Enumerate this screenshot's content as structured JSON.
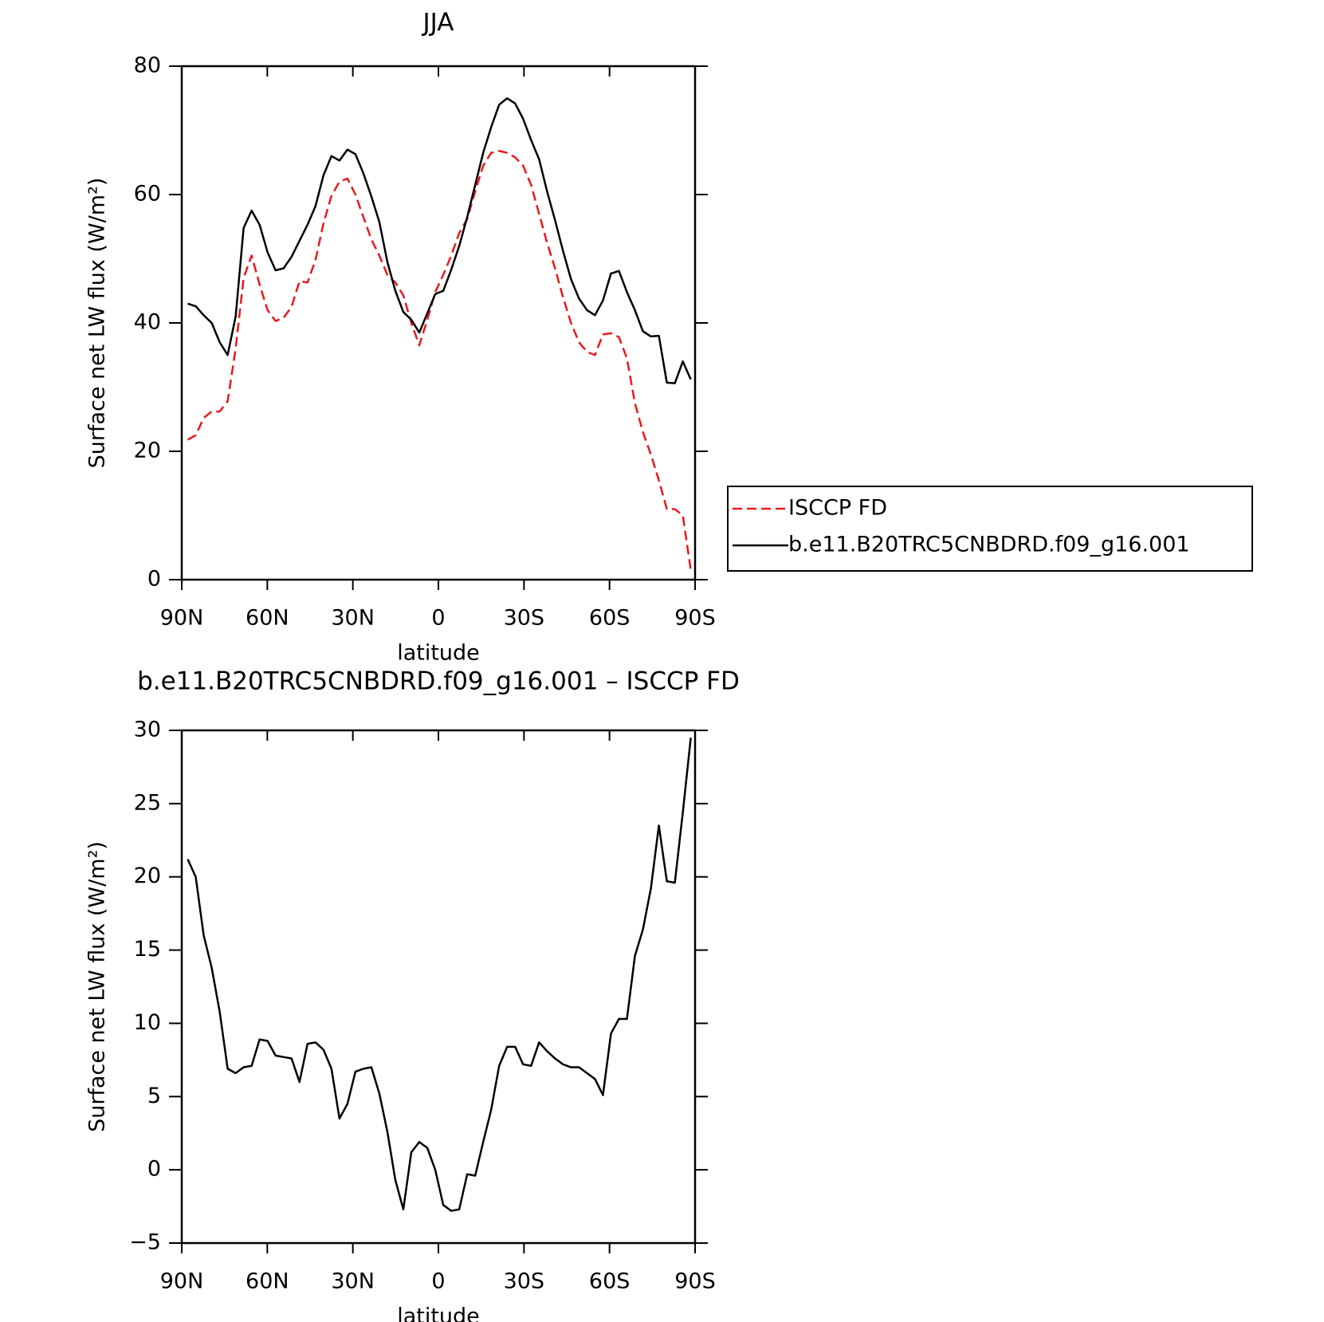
{
  "chart_data": [
    {
      "type": "line",
      "title": "JJA",
      "xlabel": "latitude",
      "ylabel": "Surface net LW flux (W/m²)",
      "x": [
        87.9,
        85.1,
        82.3,
        79.5,
        76.7,
        73.9,
        71.1,
        68.3,
        65.5,
        62.7,
        59.9,
        57.1,
        54.3,
        51.5,
        48.7,
        45.9,
        43.1,
        40.3,
        37.5,
        34.7,
        31.9,
        29.1,
        26.3,
        23.5,
        20.7,
        17.9,
        15.1,
        12.3,
        9.5,
        6.7,
        3.9,
        1.1,
        -1.7,
        -4.5,
        -7.3,
        -10.1,
        -12.9,
        -15.7,
        -18.5,
        -21.3,
        -24.1,
        -26.9,
        -29.7,
        -32.5,
        -35.3,
        -38.1,
        -40.9,
        -43.7,
        -46.5,
        -49.3,
        -52.1,
        -54.9,
        -57.7,
        -60.5,
        -63.3,
        -66.1,
        -68.9,
        -71.7,
        -74.5,
        -77.3,
        -80.1,
        -82.9,
        -85.7,
        -88.5
      ],
      "series": [
        {
          "name": "ISCCP FD",
          "color": "#e8191c",
          "dash": true,
          "values": [
            21.8,
            22.5,
            25.2,
            26.2,
            26.2,
            27.8,
            36,
            47,
            50.5,
            46,
            42,
            40.3,
            40.8,
            42.5,
            46.5,
            46.3,
            49.8,
            55.5,
            59.8,
            62,
            62.5,
            60,
            56.5,
            53,
            50.5,
            47.5,
            46.3,
            44.3,
            40,
            36.5,
            40.5,
            44.8,
            47.5,
            50.5,
            54,
            56.2,
            60.5,
            64.5,
            66.5,
            66.8,
            66.5,
            65.8,
            64.5,
            61.5,
            57,
            52.5,
            48.5,
            44,
            40,
            37,
            35.5,
            35,
            38.2,
            38.4,
            37.8,
            34.5,
            27.5,
            23,
            19.5,
            15.5,
            11,
            11,
            10,
            1.5
          ]
        },
        {
          "name": "b.e11.B20TRC5CNBDRD.f09_g16.001",
          "color": "#000000",
          "dash": false,
          "values": [
            43,
            42.6,
            41.2,
            40,
            37,
            35,
            41,
            54.8,
            57.5,
            55.3,
            51,
            48.2,
            48.5,
            50.3,
            52.8,
            55.3,
            58.2,
            63,
            66,
            65.3,
            67,
            66.3,
            63.3,
            59.7,
            55.7,
            49.5,
            45,
            41.7,
            40.5,
            38.5,
            41.5,
            44.5,
            45,
            48.3,
            52,
            56.5,
            61.5,
            66.5,
            70.5,
            74,
            75,
            74.2,
            71.8,
            68.5,
            65.5,
            60.5,
            56,
            51.2,
            46.8,
            43.8,
            42,
            41.2,
            43.5,
            47.7,
            48.1,
            44.8,
            42,
            38.7,
            37.9,
            38,
            30.7,
            30.6,
            34,
            31.2
          ]
        }
      ],
      "xlim": [
        90,
        -90
      ],
      "xticks": [
        {
          "value": 90,
          "label": "90N"
        },
        {
          "value": 60,
          "label": "60N"
        },
        {
          "value": 30,
          "label": "30N"
        },
        0,
        {
          "value": -30,
          "label": "30S"
        },
        {
          "value": -60,
          "label": "60S"
        },
        {
          "value": -90,
          "label": "90S"
        }
      ],
      "ylim": [
        0,
        80
      ],
      "yticks": [
        0,
        20,
        40,
        60,
        80
      ],
      "legend": "right"
    },
    {
      "type": "line",
      "title": "b.e11.B20TRC5CNBDRD.f09_g16.001 – ISCCP FD",
      "xlabel": "latitude",
      "ylabel": "Surface net LW flux (W/m²)",
      "x": [
        87.9,
        85.1,
        82.3,
        79.5,
        76.7,
        73.9,
        71.1,
        68.3,
        65.5,
        62.7,
        59.9,
        57.1,
        54.3,
        51.5,
        48.7,
        45.9,
        43.1,
        40.3,
        37.5,
        34.7,
        31.9,
        29.1,
        26.3,
        23.5,
        20.7,
        17.9,
        15.1,
        12.3,
        9.5,
        6.7,
        3.9,
        1.1,
        -1.7,
        -4.5,
        -7.3,
        -10.1,
        -12.9,
        -15.7,
        -18.5,
        -21.3,
        -24.1,
        -26.9,
        -29.7,
        -32.5,
        -35.3,
        -38.1,
        -40.9,
        -43.7,
        -46.5,
        -49.3,
        -52.1,
        -54.9,
        -57.7,
        -60.5,
        -63.3,
        -66.1,
        -68.9,
        -71.7,
        -74.5,
        -77.3,
        -80.1,
        -82.9,
        -85.7,
        -88.5
      ],
      "values": [
        21.2,
        20,
        16,
        13.8,
        10.8,
        6.9,
        6.6,
        7.0,
        7.1,
        8.9,
        8.8,
        7.8,
        7.7,
        7.6,
        6.0,
        8.6,
        8.7,
        8.2,
        6.9,
        3.5,
        4.5,
        6.7,
        6.9,
        7.0,
        5.2,
        2.6,
        -0.7,
        -2.7,
        1.2,
        1.9,
        1.5,
        0.0,
        -2.4,
        -2.8,
        -2.7,
        -0.3,
        -0.4,
        1.9,
        4.1,
        7.1,
        8.4,
        8.4,
        7.2,
        7.1,
        8.7,
        8.1,
        7.6,
        7.2,
        7.0,
        7.0,
        6.6,
        6.2,
        5.1,
        9.3,
        10.3,
        10.3,
        14.6,
        16.4,
        19.2,
        23.5,
        19.7,
        19.6,
        24.4,
        29.5
      ],
      "color": "#000000",
      "xlim": [
        90,
        -90
      ],
      "xticks": [
        {
          "value": 90,
          "label": "90N"
        },
        {
          "value": 60,
          "label": "60N"
        },
        {
          "value": 30,
          "label": "30N"
        },
        0,
        {
          "value": -30,
          "label": "30S"
        },
        {
          "value": -60,
          "label": "60S"
        },
        {
          "value": -90,
          "label": "90S"
        }
      ],
      "ylim": [
        -5,
        30
      ],
      "yticks": [
        {
          "value": -5,
          "label": "−5"
        },
        0,
        5,
        10,
        15,
        20,
        25,
        30
      ]
    }
  ]
}
